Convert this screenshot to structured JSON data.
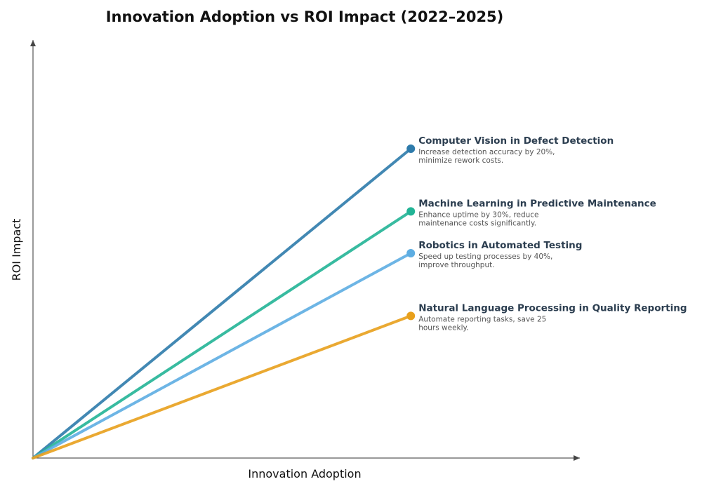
{
  "chart_data": {
    "type": "line",
    "title": "Innovation Adoption vs ROI Impact (2022–2025)",
    "xlabel": "Innovation Adoption",
    "ylabel": "ROI Impact",
    "x_axis_ticks": false,
    "y_axis_ticks": false,
    "xlim": [
      0,
      10
    ],
    "ylim": [
      0,
      10
    ],
    "grid": false,
    "legend": "annotations at line endpoints",
    "series": [
      {
        "name": "Computer Vision in Defect Detection",
        "description": [
          "Increase detection accuracy by 20%,",
          "minimize rework costs."
        ],
        "color": "#2e7bab",
        "x": [
          0,
          6.9
        ],
        "y": [
          0,
          7.4
        ]
      },
      {
        "name": "Machine Learning in Predictive Maintenance",
        "description": [
          "Enhance uptime by 30%, reduce",
          "maintenance costs significantly."
        ],
        "color": "#22b496",
        "x": [
          0,
          6.9
        ],
        "y": [
          0,
          5.9
        ]
      },
      {
        "name": "Robotics in Automated Testing",
        "description": [
          "Speed up testing processes by 40%,",
          "improve throughput."
        ],
        "color": "#5dade2",
        "x": [
          0,
          6.9
        ],
        "y": [
          0,
          4.9
        ]
      },
      {
        "name": "Natural Language Processing in Quality Reporting",
        "description": [
          "Automate reporting tasks, save 25",
          "hours weekly."
        ],
        "color": "#e8a01c",
        "x": [
          0,
          6.9
        ],
        "y": [
          0,
          3.4
        ]
      }
    ]
  }
}
